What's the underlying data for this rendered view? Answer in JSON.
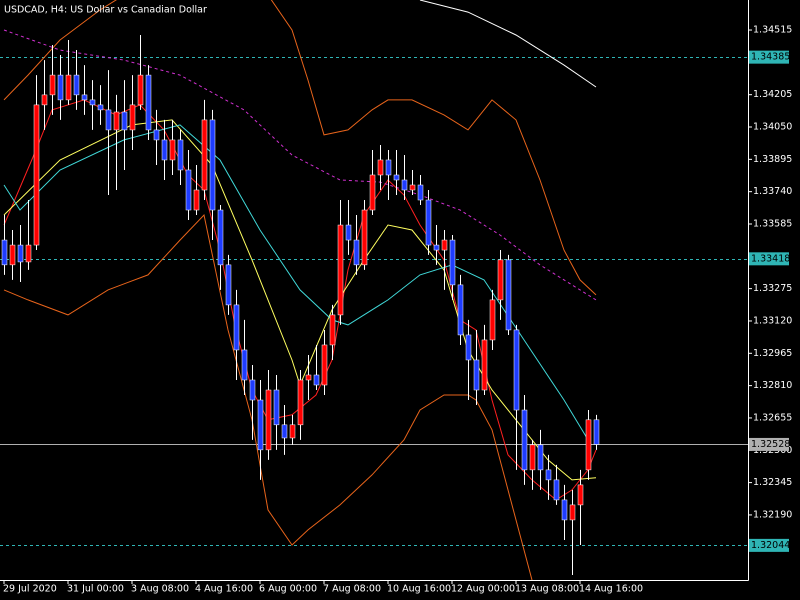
{
  "chart_data": {
    "type": "candlestick",
    "title": "USDCAD, H4:  US Dollar vs Canadian Dollar",
    "categories": [
      "29 Jul 2020",
      null,
      null,
      null,
      null,
      null,
      null,
      null,
      "31 Jul 00:00",
      null,
      null,
      null,
      null,
      null,
      null,
      null,
      "3 Aug 08:00",
      null,
      null,
      null,
      null,
      null,
      null,
      null,
      "4 Aug 16:00",
      null,
      null,
      null,
      null,
      null,
      null,
      null,
      "6 Aug 00:00",
      null,
      null,
      null,
      null,
      null,
      null,
      null,
      "7 Aug 08:00",
      null,
      null,
      null,
      null,
      null,
      null,
      null,
      "10 Aug 16:00",
      null,
      null,
      null,
      null,
      null,
      null,
      null,
      "12 Aug 00:00",
      null,
      null,
      null,
      null,
      null,
      null,
      null,
      "13 Aug 08:00",
      null,
      null,
      null,
      null,
      null,
      null,
      null,
      "14 Aug 16:00",
      null,
      null
    ],
    "open": [
      1.33508,
      1.33389,
      1.33484,
      1.33403,
      1.33484,
      1.34156,
      1.34204,
      1.34299,
      1.3418,
      1.34299,
      1.34204,
      1.3418,
      1.34156,
      1.34132,
      1.34036,
      1.34122,
      1.34036,
      1.34156,
      1.34299,
      1.34036,
      1.33988,
      1.33892,
      1.33988,
      1.33844,
      1.33652,
      1.33748,
      1.34084,
      1.33652,
      1.33389,
      1.33197,
      1.32981,
      1.32837,
      1.32741,
      1.32502,
      1.32789,
      1.32622,
      1.32559,
      1.32622,
      1.32837,
      1.32861,
      1.32813,
      1.33005,
      1.33149,
      1.3358,
      1.33508,
      1.33389,
      1.33652,
      1.3382,
      1.33892,
      1.3382,
      1.33796,
      1.33748,
      1.33772,
      1.337,
      1.33484,
      1.3346,
      1.33508,
      1.33293,
      1.33053,
      1.32933,
      1.32789,
      1.33029,
      1.33221,
      1.33413,
      1.33077,
      1.32693,
      1.32406,
      1.32526,
      1.32406,
      1.32358,
      1.32262,
      1.32166,
      1.32238,
      1.32406,
      1.32646
    ],
    "high": [
      1.33628,
      1.33556,
      1.3358,
      1.337,
      1.34299,
      1.34371,
      1.34443,
      1.34395,
      1.34467,
      1.34419,
      1.34347,
      1.34275,
      1.34251,
      1.34323,
      1.34204,
      1.34275,
      1.34299,
      1.34491,
      1.34347,
      1.34132,
      1.34084,
      1.34084,
      1.34036,
      1.3394,
      1.33868,
      1.3418,
      1.34132,
      1.33676,
      1.33437,
      1.33269,
      1.33125,
      1.32909,
      1.32837,
      1.32885,
      1.32861,
      1.32717,
      1.3267,
      1.32885,
      1.32957,
      1.33005,
      1.33077,
      1.33197,
      1.337,
      1.337,
      1.33628,
      1.337,
      1.3394,
      1.33964,
      1.3394,
      1.3394,
      1.33916,
      1.33844,
      1.3382,
      1.33748,
      1.3358,
      1.33556,
      1.33532,
      1.33341,
      1.33125,
      1.33077,
      1.33101,
      1.33269,
      1.3346,
      1.33437,
      1.33101,
      1.32765,
      1.3255,
      1.32598,
      1.32478,
      1.3243,
      1.32334,
      1.3231,
      1.32406,
      1.32693,
      1.3267
    ],
    "low": [
      1.33341,
      1.33317,
      1.33307,
      1.33365,
      1.3346,
      1.34036,
      1.34108,
      1.34084,
      1.34156,
      1.34132,
      1.34108,
      1.34036,
      1.3406,
      1.33724,
      1.33748,
      1.33844,
      1.3394,
      1.34132,
      1.33988,
      1.33868,
      1.33796,
      1.3382,
      1.33772,
      1.33604,
      1.33628,
      1.337,
      1.33508,
      1.33269,
      1.33149,
      1.32837,
      1.32765,
      1.3255,
      1.32358,
      1.32454,
      1.32502,
      1.32478,
      1.32526,
      1.3255,
      1.32741,
      1.32789,
      1.32765,
      1.32933,
      1.33101,
      1.33437,
      1.33341,
      1.33365,
      1.33628,
      1.33748,
      1.337,
      1.33724,
      1.337,
      1.33724,
      1.33676,
      1.33437,
      1.33389,
      1.33269,
      1.33221,
      1.33005,
      1.32741,
      1.32717,
      1.32765,
      1.32981,
      1.33125,
      1.33053,
      1.32406,
      1.32334,
      1.3231,
      1.3231,
      1.32262,
      1.32238,
      1.3207,
      1.31902,
      1.32046,
      1.32358,
      1.32502
    ],
    "close": [
      1.33389,
      1.33484,
      1.33403,
      1.33484,
      1.34156,
      1.34204,
      1.34299,
      1.3418,
      1.34299,
      1.34204,
      1.3418,
      1.34156,
      1.34132,
      1.34036,
      1.34122,
      1.34036,
      1.34156,
      1.34299,
      1.34036,
      1.33988,
      1.33892,
      1.33988,
      1.33844,
      1.33652,
      1.33748,
      1.34084,
      1.33652,
      1.33389,
      1.33197,
      1.32981,
      1.32837,
      1.32741,
      1.32502,
      1.32789,
      1.32622,
      1.32559,
      1.32622,
      1.32837,
      1.32861,
      1.32813,
      1.33005,
      1.33149,
      1.3358,
      1.33508,
      1.33389,
      1.33652,
      1.3382,
      1.33892,
      1.3382,
      1.33796,
      1.33748,
      1.33772,
      1.337,
      1.33484,
      1.3346,
      1.33508,
      1.33293,
      1.33053,
      1.32933,
      1.32789,
      1.33029,
      1.33221,
      1.33413,
      1.33077,
      1.32693,
      1.32406,
      1.32526,
      1.32406,
      1.32358,
      1.32262,
      1.32166,
      1.32238,
      1.32334,
      1.32646,
      1.32528
    ],
    "up_color": "#ff0000",
    "down_color": "#1e3cff",
    "wick_color": "#ffffff",
    "ylim": [
      1.31878,
      1.34659
    ],
    "yticks": [
      1.34515,
      1.34205,
      {
        "value": 1.3405,
        "label": "1.34050"
      },
      1.33895,
      {
        "value": 1.3374,
        "label": "1.33740"
      },
      1.33585,
      1.33275,
      {
        "value": 1.3312,
        "label": "1.33120"
      },
      1.32965,
      {
        "value": 1.3281,
        "label": "1.32810"
      },
      1.32655,
      {
        "value": 1.325,
        "label": "1.32500"
      },
      1.32345,
      {
        "value": 1.3219,
        "label": "1.32190"
      }
    ],
    "grid": false,
    "lines": [
      {
        "color": "#ff2020",
        "dashed": false,
        "x": [
          0,
          4,
          6,
          10,
          14,
          17,
          20,
          23,
          25,
          27,
          29,
          31,
          33,
          36,
          39,
          41,
          43,
          45,
          48,
          50,
          52,
          55,
          57,
          59,
          61,
          63,
          66,
          69,
          71,
          73,
          74
        ],
        "values": [
          1.3358,
          1.3394,
          1.34132,
          1.3418,
          1.34108,
          1.34156,
          1.34036,
          1.3382,
          1.33748,
          1.3346,
          1.33077,
          1.32789,
          1.32646,
          1.3267,
          1.32765,
          1.32933,
          1.33365,
          1.33628,
          1.33796,
          1.33724,
          1.3358,
          1.33413,
          1.33125,
          1.33077,
          1.32741,
          1.32478,
          1.32358,
          1.32262,
          1.3231,
          1.32406,
          1.32502
        ]
      },
      {
        "color": "#ffff60",
        "dashed": false,
        "x": [
          0,
          7,
          16,
          21,
          26,
          31,
          36,
          37,
          41,
          45,
          48,
          51,
          55,
          58,
          61,
          65,
          68,
          71,
          74
        ],
        "values": [
          1.33628,
          1.33892,
          1.3406,
          1.34084,
          1.33868,
          1.33413,
          1.32933,
          1.32813,
          1.33173,
          1.33413,
          1.3358,
          1.33556,
          1.33365,
          1.32981,
          1.32789,
          1.32598,
          1.32454,
          1.32358,
          1.32368
        ]
      },
      {
        "color": "#40d8d8",
        "dashed": false,
        "x": [
          0,
          2,
          7,
          15,
          22,
          27,
          32,
          37,
          41,
          43,
          48,
          52,
          56,
          60,
          65,
          70,
          73
        ],
        "values": [
          1.33772,
          1.33652,
          1.33844,
          1.33988,
          1.3406,
          1.33892,
          1.33556,
          1.33269,
          1.33125,
          1.33101,
          1.33221,
          1.33341,
          1.33389,
          1.33317,
          1.33029,
          1.32741,
          1.3255
        ]
      },
      {
        "color": "#d030d0",
        "dashed": true,
        "x": [
          0,
          7,
          15,
          22,
          30,
          36,
          42,
          47,
          52,
          57,
          62,
          67,
          74
        ],
        "values": [
          1.34515,
          1.34419,
          1.34371,
          1.34299,
          1.34132,
          1.33916,
          1.33796,
          1.33786,
          1.33724,
          1.33652,
          1.33532,
          1.33389,
          1.33221
        ]
      },
      {
        "color": "#ffffff",
        "dashed": false,
        "x": [
          52,
          58,
          64,
          70,
          74
        ],
        "values": [
          1.34659,
          1.34601,
          1.34491,
          1.34347,
          1.34242
        ]
      },
      {
        "color": "#e8641b",
        "dashed": false,
        "x": [
          0,
          3,
          7,
          12,
          17,
          26,
          33,
          36,
          38,
          40,
          43,
          46,
          48,
          51,
          55,
          58,
          60,
          61,
          64,
          67,
          70,
          72,
          74
        ],
        "values": [
          1.3418,
          1.34299,
          1.34467,
          1.34611,
          1.34731,
          1.34779,
          1.34683,
          1.34515,
          1.34275,
          1.34012,
          1.34036,
          1.34132,
          1.3418,
          1.3418,
          1.34108,
          1.34036,
          1.34132,
          1.3418,
          1.34084,
          1.33796,
          1.3346,
          1.33317,
          1.33245
        ]
      },
      {
        "color": "#e8641b",
        "dashed": false,
        "x": [
          0,
          3,
          8,
          13,
          18,
          22,
          25,
          28,
          31,
          33,
          36,
          38,
          42,
          46,
          50,
          52,
          55,
          58,
          59,
          61,
          63,
          66
        ],
        "values": [
          1.33269,
          1.33221,
          1.33149,
          1.33269,
          1.33341,
          1.33508,
          1.33628,
          1.33077,
          1.32646,
          1.32214,
          1.32046,
          1.32118,
          1.32238,
          1.32382,
          1.3255,
          1.32693,
          1.32765,
          1.32765,
          1.32741,
          1.32598,
          1.3231,
          1.31878
        ]
      }
    ],
    "levels": [
      1.34385,
      1.33418,
      1.32044
    ],
    "level_color": "#2fb5b5",
    "price_line": 1.32528,
    "price_line_color": "#b0b0b0"
  }
}
